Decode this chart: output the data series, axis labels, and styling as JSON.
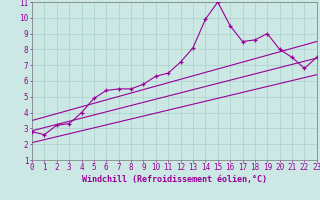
{
  "title": "",
  "xlabel": "Windchill (Refroidissement éolien,°C)",
  "xlim": [
    0,
    23
  ],
  "ylim": [
    1,
    11
  ],
  "xticks": [
    0,
    1,
    2,
    3,
    4,
    5,
    6,
    7,
    8,
    9,
    10,
    11,
    12,
    13,
    14,
    15,
    16,
    17,
    18,
    19,
    20,
    21,
    22,
    23
  ],
  "yticks": [
    1,
    2,
    3,
    4,
    5,
    6,
    7,
    8,
    9,
    10,
    11
  ],
  "bg_color": "#cce8e4",
  "line_color": "#990099",
  "grid_color": "#aad0cc",
  "series1_x": [
    0,
    1,
    2,
    3,
    4,
    5,
    6,
    7,
    8,
    9,
    10,
    11,
    12,
    13,
    14,
    15,
    16,
    17,
    18,
    19,
    20,
    21,
    22,
    23
  ],
  "series1_y": [
    2.8,
    2.6,
    3.2,
    3.3,
    4.0,
    4.9,
    5.4,
    5.5,
    5.5,
    5.8,
    6.3,
    6.5,
    7.2,
    8.1,
    9.9,
    11.0,
    9.5,
    8.5,
    8.6,
    9.0,
    8.0,
    7.5,
    6.8,
    7.5
  ],
  "series2_x": [
    0,
    23
  ],
  "series2_y": [
    2.85,
    7.45
  ],
  "series3_x": [
    0,
    23
  ],
  "series3_y": [
    2.1,
    6.4
  ],
  "series4_x": [
    0,
    23
  ],
  "series4_y": [
    3.5,
    8.5
  ],
  "tick_fontsize": 5.5,
  "xlabel_fontsize": 6.0,
  "linewidth": 0.8,
  "markersize": 3.5
}
